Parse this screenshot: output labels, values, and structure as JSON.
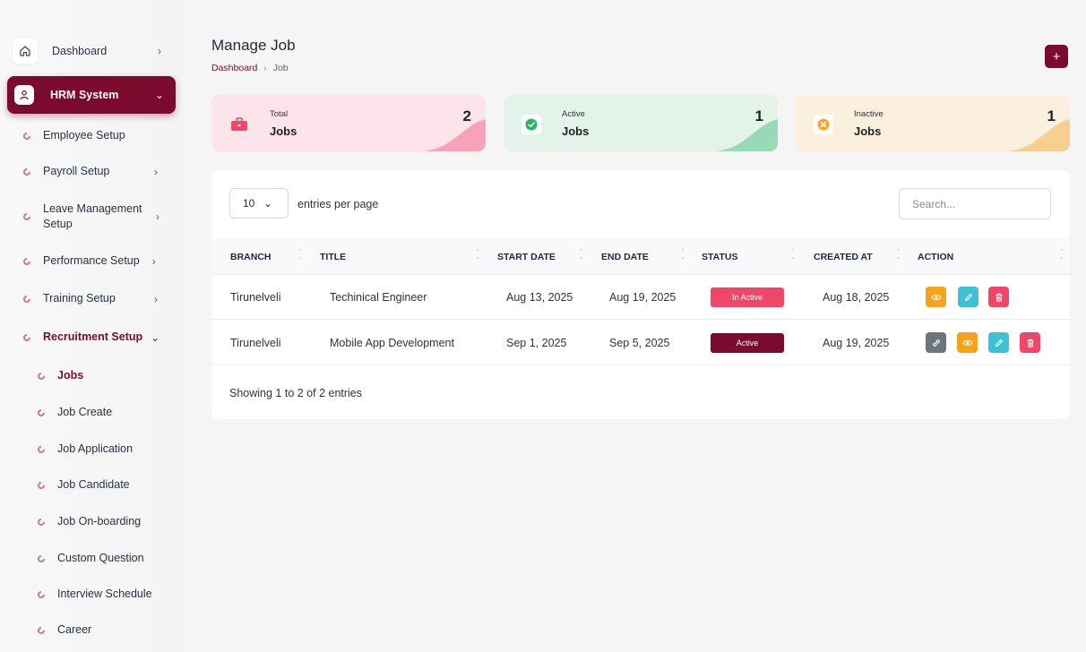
{
  "sidebar": {
    "dashboard": "Dashboard",
    "hrm": "HRM System",
    "items": {
      "employee": "Employee Setup",
      "payroll": "Payroll Setup",
      "leave": "Leave Management Setup",
      "performance": "Performance Setup",
      "training": "Training Setup",
      "recruitment": "Recruitment Setup"
    },
    "recruitment_sub": {
      "jobs": "Jobs",
      "job_create": "Job Create",
      "job_application": "Job Application",
      "job_candidate": "Job Candidate",
      "job_onboarding": "Job On-boarding",
      "custom_question": "Custom Question",
      "interview_schedule": "Interview Schedule",
      "career": "Career"
    }
  },
  "header": {
    "title": "Manage Job",
    "breadcrumb": {
      "home": "Dashboard",
      "sep": "›",
      "current": "Job"
    },
    "add_label": "+"
  },
  "stats": {
    "total": {
      "small": "Total",
      "big": "Jobs",
      "value": "2",
      "color": "#fce4ea",
      "accent": "#f6a3ba",
      "icon_color": "#f0466a"
    },
    "active": {
      "small": "Active",
      "big": "Jobs",
      "value": "1",
      "color": "#e3f3ea",
      "accent": "#9ad9b5",
      "icon_color": "#28b463"
    },
    "inactive": {
      "small": "Inactive",
      "big": "Jobs",
      "value": "1",
      "color": "#fbefdd",
      "accent": "#f7cf93",
      "icon_color": "#f5a623"
    }
  },
  "table": {
    "entries_value": "10",
    "entries_label": "entries per page",
    "search_placeholder": "Search...",
    "headers": {
      "branch": "BRANCH",
      "title": "TITLE",
      "start": "START DATE",
      "end": "END DATE",
      "status": "STATUS",
      "created": "CREATED AT",
      "action": "ACTION"
    },
    "rows": [
      {
        "branch": "Tirunelveli",
        "title": "Techinical Engineer",
        "start": "Aug 13, 2025",
        "end": "Aug 19, 2025",
        "status": "In Active",
        "status_color": "#f0466a",
        "created": "Aug 18, 2025"
      },
      {
        "branch": "Tirunelveli",
        "title": "Mobile App Development",
        "start": "Sep 1, 2025",
        "end": "Sep 5, 2025",
        "status": "Active",
        "status_color": "#7b0a2f",
        "created": "Aug 19, 2025"
      }
    ],
    "footer": "Showing 1 to 2 of 2 entries"
  },
  "colors": {
    "brand": "#7b0a2f",
    "view": "#f7a21b",
    "edit": "#3ec1d3",
    "delete": "#f0466a",
    "copy": "#6c757d"
  }
}
